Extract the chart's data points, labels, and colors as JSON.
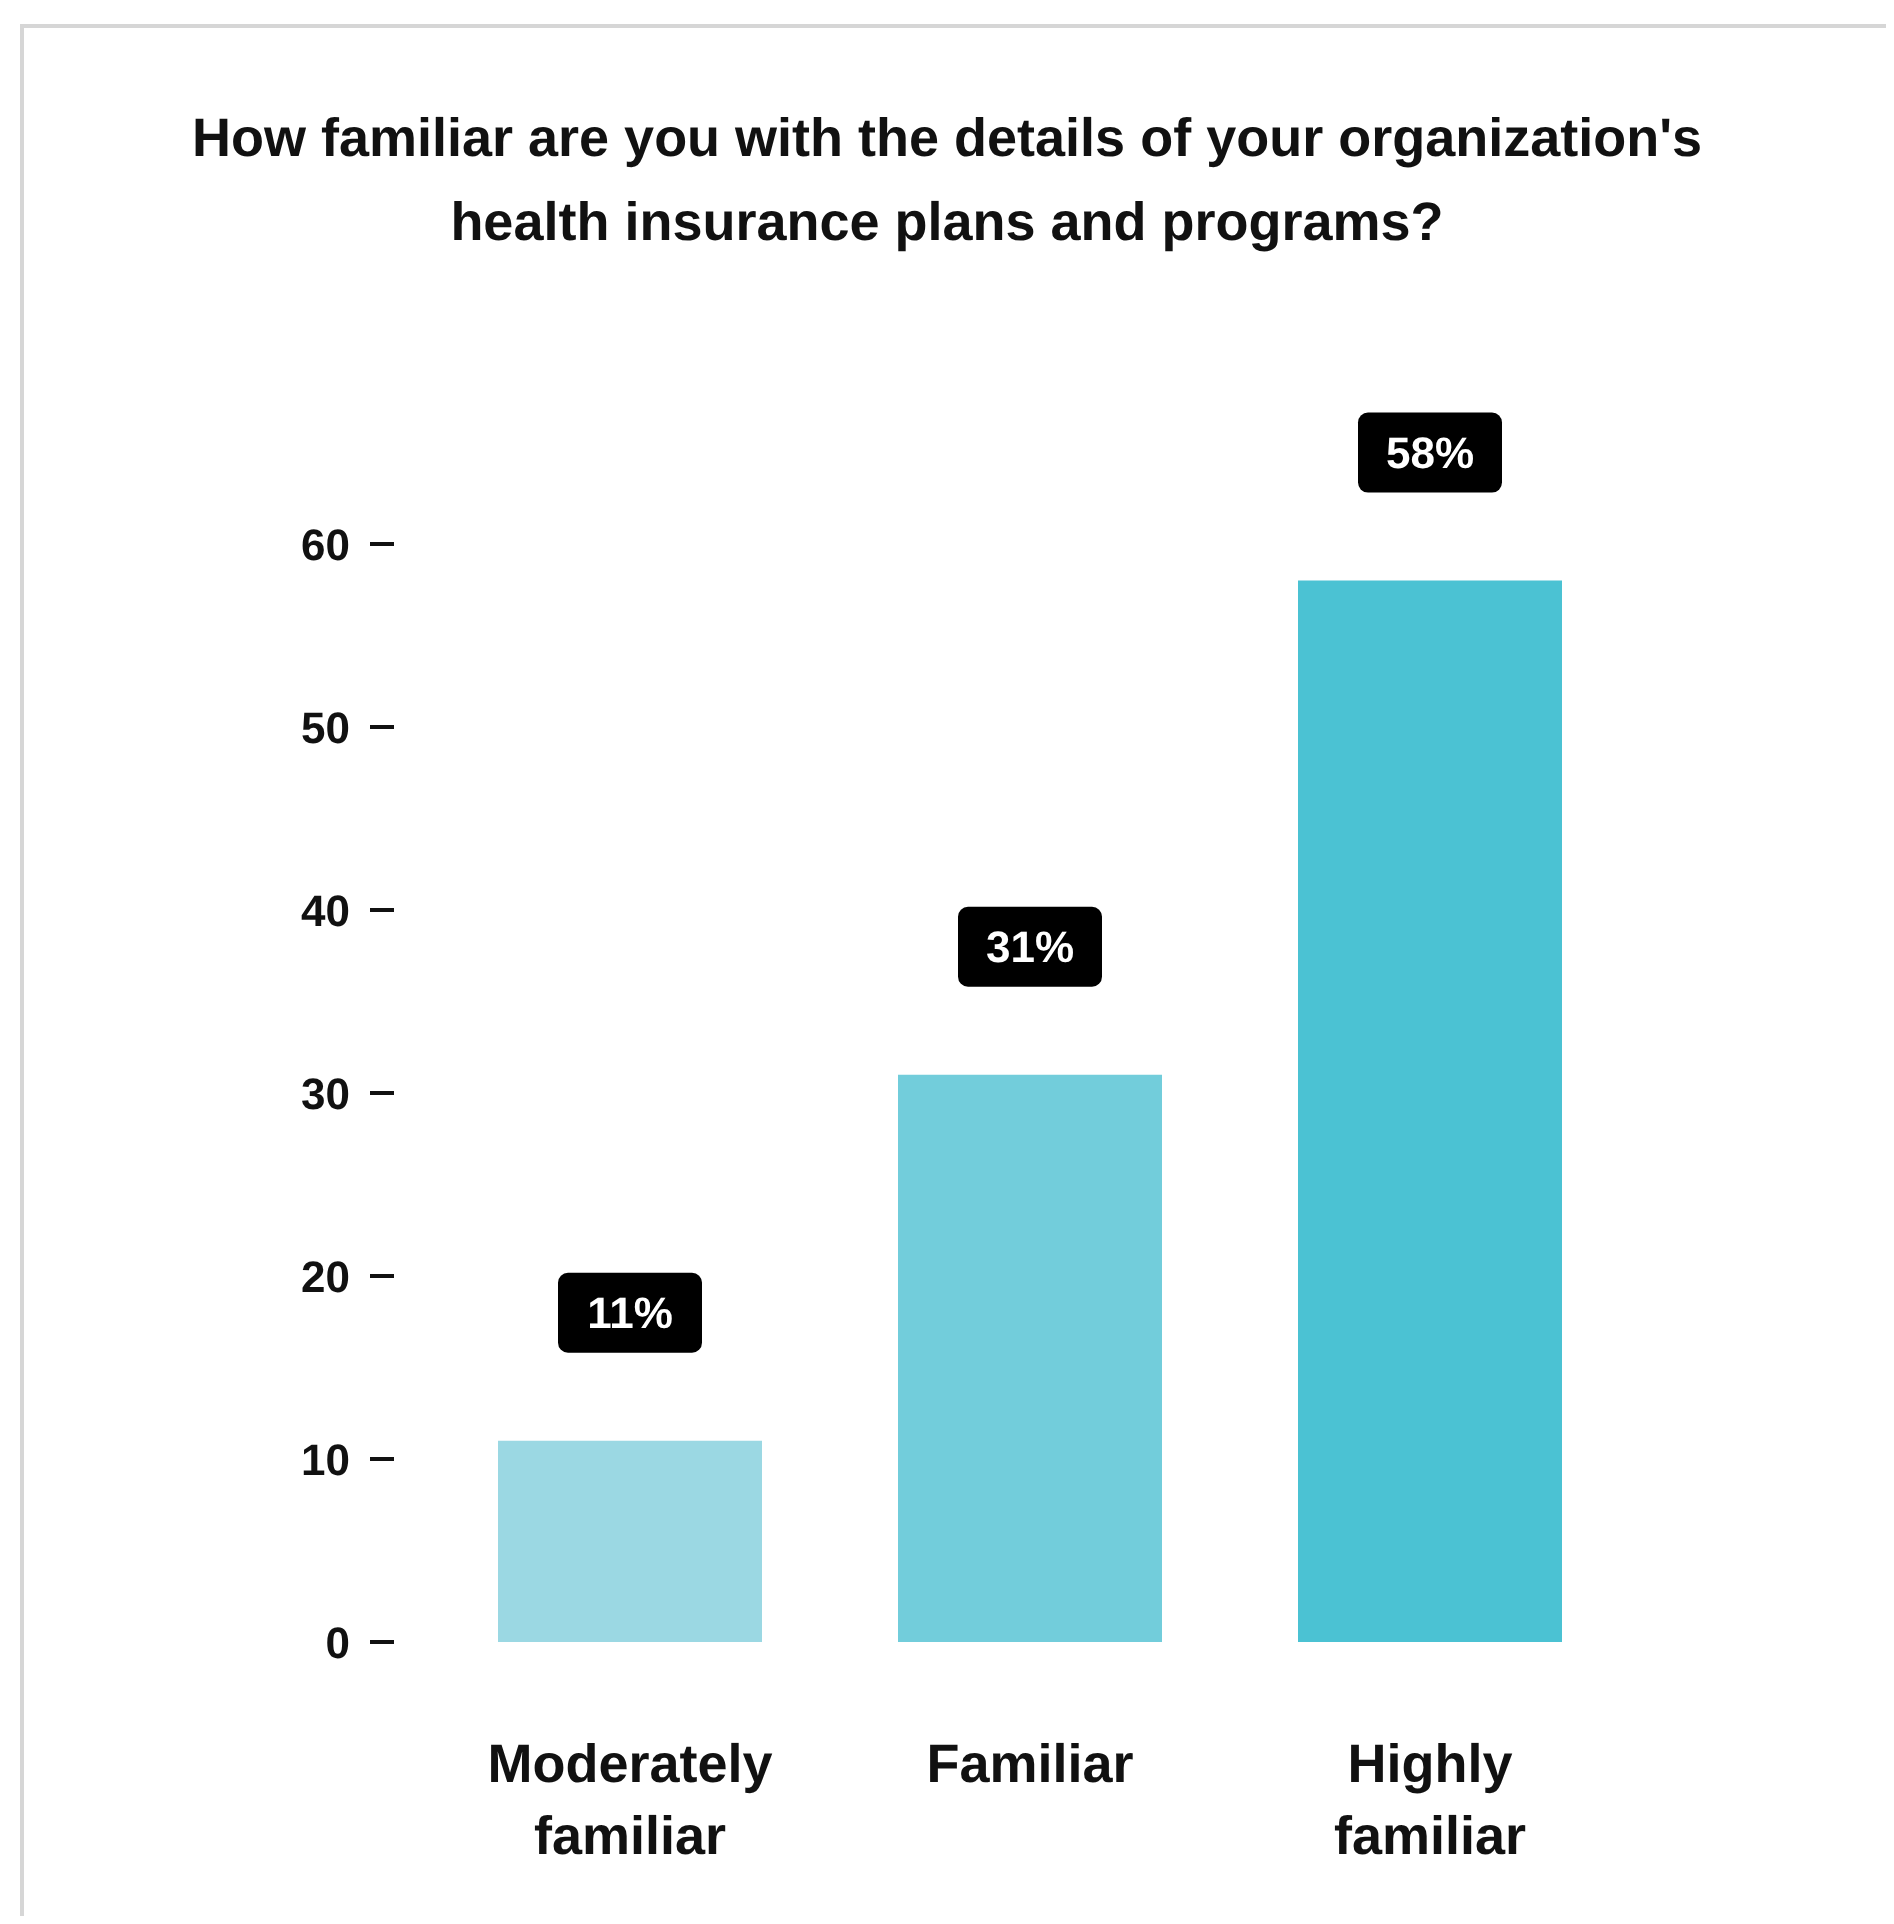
{
  "chart_data": {
    "type": "bar",
    "title": "How familiar are you with the details of your organization's health insurance plans and programs?",
    "categories": [
      "Moderately familiar",
      "Familiar",
      "Highly familiar"
    ],
    "values": [
      11,
      31,
      58
    ],
    "value_labels": [
      "11%",
      "31%",
      "58%"
    ],
    "colors": [
      "#9bd8e3",
      "#72cddb",
      "#4bc2d3"
    ],
    "ylim": [
      0,
      60
    ],
    "yticks": [
      0,
      10,
      20,
      30,
      40,
      50,
      60
    ],
    "grid": false,
    "legend": false
  }
}
